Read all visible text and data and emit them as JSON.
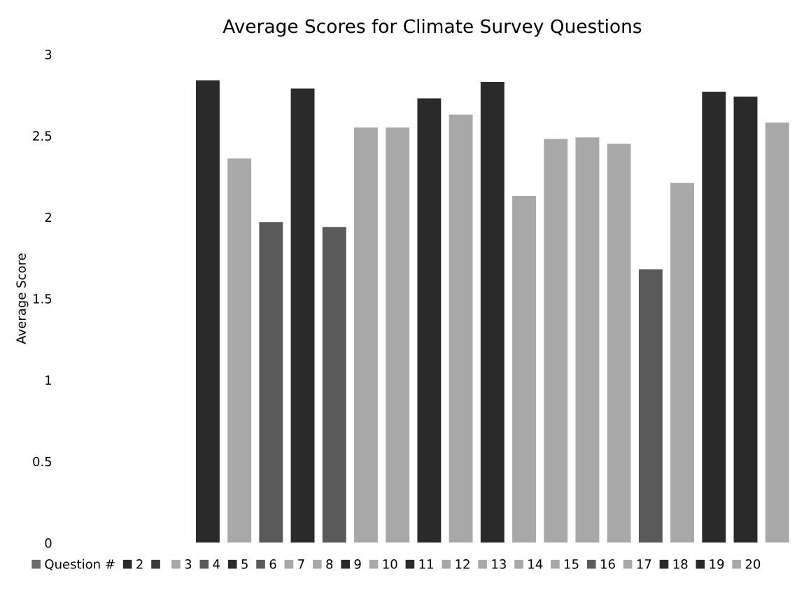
{
  "chart_data": {
    "type": "bar",
    "title": "Average Scores for Climate Survey Questions",
    "ylabel": "Average Score",
    "categories": [
      null
    ],
    "series": [
      {
        "name": "Question #",
        "color": "#6a6a6a",
        "values": [
          null
        ]
      },
      {
        "name": "2",
        "color": "#2a2a2a",
        "values": [
          2.84
        ]
      },
      {
        "color": "#3a3a3a",
        "values": [
          null
        ]
      },
      {
        "name": "3",
        "color": "#a8a8a8",
        "values": [
          2.36
        ]
      },
      {
        "name": "4",
        "color": "#5a5a5a",
        "values": [
          1.97
        ]
      },
      {
        "name": "5",
        "color": "#2a2a2a",
        "values": [
          2.79
        ]
      },
      {
        "name": "6",
        "color": "#5a5a5a",
        "values": [
          1.94
        ]
      },
      {
        "name": "7",
        "color": "#a8a8a8",
        "values": [
          2.55
        ]
      },
      {
        "name": "8",
        "color": "#a8a8a8",
        "values": [
          2.55
        ]
      },
      {
        "name": "9",
        "color": "#2a2a2a",
        "values": [
          2.73
        ]
      },
      {
        "name": "10",
        "color": "#a8a8a8",
        "values": [
          2.63
        ]
      },
      {
        "name": "11",
        "color": "#2a2a2a",
        "values": [
          2.83
        ]
      },
      {
        "name": "12",
        "color": "#a8a8a8",
        "values": [
          2.13
        ]
      },
      {
        "name": "13",
        "color": "#a8a8a8",
        "values": [
          2.48
        ]
      },
      {
        "name": "14",
        "color": "#a8a8a8",
        "values": [
          2.49
        ]
      },
      {
        "name": "15",
        "color": "#a8a8a8",
        "values": [
          2.45
        ]
      },
      {
        "name": "16",
        "color": "#5a5a5a",
        "values": [
          1.68
        ]
      },
      {
        "name": "17",
        "color": "#a8a8a8",
        "values": [
          2.21
        ]
      },
      {
        "name": "18",
        "color": "#2a2a2a",
        "values": [
          2.77
        ]
      },
      {
        "name": "19",
        "color": "#2a2a2a",
        "values": [
          2.74
        ]
      },
      {
        "name": "20",
        "color": "#a8a8a8",
        "values": [
          2.58
        ]
      }
    ],
    "ylim": [
      0,
      3
    ],
    "yticks": [
      0,
      0.5,
      1,
      1.5,
      2,
      2.5,
      3
    ],
    "grid": false,
    "legend": "bottom",
    "tick_labels": "y"
  }
}
